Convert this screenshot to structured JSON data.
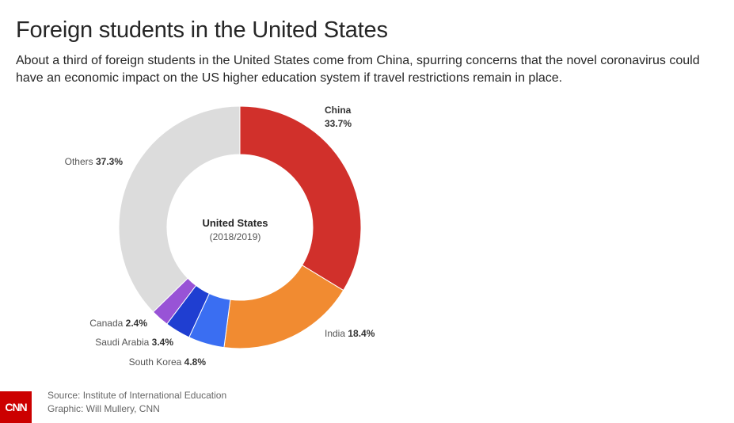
{
  "header": {
    "title": "Foreign students in the United States",
    "subtitle": "About a third of foreign students in the United States come from China, spurring concerns that the novel coronavirus could have an economic impact on the US higher education system if travel restrictions remain in place."
  },
  "chart_data": {
    "type": "pie",
    "donut": true,
    "center_title": "United States",
    "center_subtitle": "(2018/2019)",
    "slices": [
      {
        "name": "China",
        "value": 33.7,
        "value_label": "33.7%",
        "color": "#d1302b"
      },
      {
        "name": "India",
        "value": 18.4,
        "value_label": "18.4%",
        "color": "#f18b31"
      },
      {
        "name": "South Korea",
        "value": 4.8,
        "value_label": "4.8%",
        "color": "#3a6ef2"
      },
      {
        "name": "Saudi Arabia",
        "value": 3.4,
        "value_label": "3.4%",
        "color": "#1f3ed1"
      },
      {
        "name": "Canada",
        "value": 2.4,
        "value_label": "2.4%",
        "color": "#9853d6"
      },
      {
        "name": "Others",
        "value": 37.3,
        "value_label": "37.3%",
        "color": "#dcdcdc"
      }
    ]
  },
  "footer": {
    "source": "Source: Institute of International Education",
    "graphic": "Graphic: Will Mullery, CNN"
  },
  "logo": {
    "text": "CNN",
    "color": "#cc0000"
  }
}
